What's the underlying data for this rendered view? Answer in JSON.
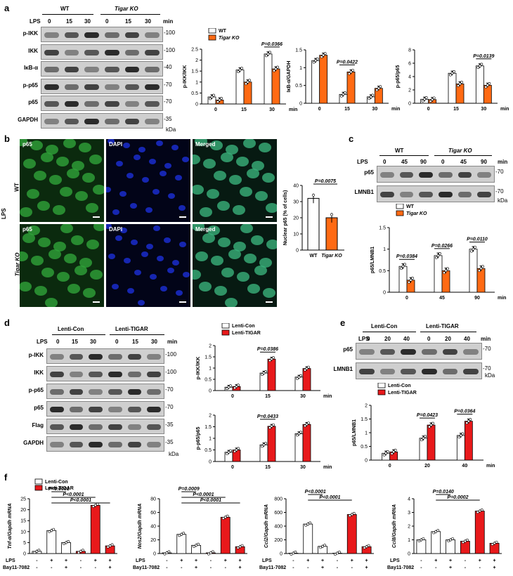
{
  "panels": {
    "a": {
      "label": "a",
      "lps": "LPS",
      "groups": [
        "WT",
        "Tigar KO"
      ],
      "times": [
        "0",
        "15",
        "30"
      ],
      "time_unit": "min",
      "rows": [
        {
          "name": "p-IKK",
          "mw": "100"
        },
        {
          "name": "IKK",
          "mw": "100"
        },
        {
          "name": "IκB-α",
          "mw": "40"
        },
        {
          "name": "p-p65",
          "mw": "70"
        },
        {
          "name": "p65",
          "mw": "70"
        },
        {
          "name": "GAPDH",
          "mw": "35"
        }
      ],
      "kda": "kDa"
    },
    "b": {
      "label": "b",
      "side": "LPS",
      "rows": [
        "WT",
        "Tigar KO"
      ],
      "images": [
        "p65",
        "DAPI",
        "Merged"
      ]
    },
    "c": {
      "label": "c",
      "lps": "LPS",
      "groups": [
        "WT",
        "Tigar KO"
      ],
      "times": [
        "0",
        "45",
        "90"
      ],
      "time_unit": "min",
      "rows": [
        {
          "name": "p65",
          "mw": "70"
        },
        {
          "name": "LMNB1",
          "mw": "70"
        }
      ],
      "kda": "kDa"
    },
    "d": {
      "label": "d",
      "lps": "LPS",
      "groups": [
        "Lenti-Con",
        "Lenti-TIGAR"
      ],
      "times": [
        "0",
        "15",
        "30"
      ],
      "time_unit": "min",
      "rows": [
        {
          "name": "p-IKK",
          "mw": "100"
        },
        {
          "name": "IKK",
          "mw": "100"
        },
        {
          "name": "p-p65",
          "mw": "70"
        },
        {
          "name": "p65",
          "mw": "70"
        },
        {
          "name": "Flag",
          "mw": "35"
        },
        {
          "name": "GAPDH",
          "mw": "35"
        }
      ],
      "kda": "kDa"
    },
    "e": {
      "label": "e",
      "lps": "LPS",
      "groups": [
        "Lenti-Con",
        "Lenti-TIGAR"
      ],
      "times": [
        "0",
        "20",
        "40"
      ],
      "time_unit": "min",
      "rows": [
        {
          "name": "p65",
          "mw": "70"
        },
        {
          "name": "LMNB1",
          "mw": "70"
        }
      ],
      "kda": "kDa"
    },
    "f": {
      "label": "f",
      "lps": "LPS",
      "bay": "Bay11-7082",
      "lps_signs": [
        "-",
        "+",
        "+",
        "-",
        "+",
        "+"
      ],
      "bay_signs": [
        "-",
        "-",
        "+",
        "-",
        "-",
        "+"
      ]
    }
  },
  "colors": {
    "wt": "#ffffff",
    "ko": "#ff6a13",
    "lenti_con": "#ffffff",
    "lenti_tigar": "#e8191b"
  },
  "chart_data": [
    {
      "id": "a1",
      "type": "bar",
      "ylabel": "p-IKK/IKK",
      "xlabel": "min",
      "categories": [
        "0",
        "15",
        "30"
      ],
      "ylim": [
        0,
        2.5
      ],
      "yticks": [
        0,
        0.5,
        1.0,
        1.5,
        2.0,
        2.5
      ],
      "legend": [
        "WT",
        "Tigar KO"
      ],
      "series": [
        {
          "name": "WT",
          "values": [
            0.32,
            1.55,
            2.28
          ]
        },
        {
          "name": "Tigar KO",
          "values": [
            0.18,
            1.0,
            1.6
          ]
        }
      ],
      "annotations": [
        {
          "text": "P=0.0366",
          "category": "30"
        }
      ]
    },
    {
      "id": "a2",
      "type": "bar",
      "ylabel": "IκB-α/GAPDH",
      "xlabel": "min",
      "categories": [
        "0",
        "15",
        "30"
      ],
      "ylim": [
        0,
        1.5
      ],
      "yticks": [
        0,
        0.5,
        1.0,
        1.5
      ],
      "series": [
        {
          "name": "WT",
          "values": [
            1.2,
            0.25,
            0.18
          ]
        },
        {
          "name": "Tigar KO",
          "values": [
            1.35,
            0.88,
            0.42
          ]
        }
      ],
      "annotations": [
        {
          "text": "P=0.0422",
          "category": "15"
        }
      ]
    },
    {
      "id": "a3",
      "type": "bar",
      "ylabel": "p-p65/p65",
      "xlabel": "min",
      "categories": [
        "0",
        "15",
        "30"
      ],
      "ylim": [
        0,
        8
      ],
      "yticks": [
        0,
        2,
        4,
        6,
        8
      ],
      "series": [
        {
          "name": "WT",
          "values": [
            0.6,
            4.5,
            5.6
          ]
        },
        {
          "name": "Tigar KO",
          "values": [
            0.55,
            2.9,
            2.7
          ]
        }
      ],
      "annotations": [
        {
          "text": "P=0.0139",
          "category": "30"
        }
      ]
    },
    {
      "id": "b1",
      "type": "bar",
      "ylabel": "Nuclear p65 (% of cells)",
      "categories": [
        "WT",
        "Tigar KO"
      ],
      "ylim": [
        0,
        40
      ],
      "yticks": [
        0,
        10,
        20,
        30,
        40
      ],
      "series": [
        {
          "name": "Nuclear p65",
          "values": [
            32,
            20
          ]
        }
      ],
      "annotations": [
        {
          "text": "P=0.0075"
        }
      ]
    },
    {
      "id": "c1",
      "type": "bar",
      "ylabel": "p65/LMNB1",
      "xlabel": "min",
      "categories": [
        "0",
        "45",
        "90"
      ],
      "ylim": [
        0,
        1.5
      ],
      "yticks": [
        0,
        0.5,
        1.0,
        1.5
      ],
      "legend": [
        "WT",
        "Tigar KO"
      ],
      "series": [
        {
          "name": "WT",
          "values": [
            0.6,
            0.85,
            1.0
          ]
        },
        {
          "name": "Tigar KO",
          "values": [
            0.28,
            0.5,
            0.55
          ]
        }
      ],
      "annotations": [
        {
          "text": "P=0.0384",
          "category": "0"
        },
        {
          "text": "P=0.0266",
          "category": "45"
        },
        {
          "text": "P=0.0110",
          "category": "90"
        }
      ]
    },
    {
      "id": "d1",
      "type": "bar",
      "ylabel": "p-IKK/IKK",
      "xlabel": "min",
      "categories": [
        "0",
        "15",
        "30"
      ],
      "ylim": [
        0,
        2.0
      ],
      "yticks": [
        0,
        0.5,
        1.0,
        1.5,
        2.0
      ],
      "legend": [
        "Lenti-Con",
        "Lenti-TIGAR"
      ],
      "series": [
        {
          "name": "Lenti-Con",
          "values": [
            0.15,
            0.78,
            0.6
          ]
        },
        {
          "name": "Lenti-TIGAR",
          "values": [
            0.18,
            1.4,
            0.98
          ]
        }
      ],
      "annotations": [
        {
          "text": "P=0.0386",
          "category": "15"
        }
      ]
    },
    {
      "id": "d2",
      "type": "bar",
      "ylabel": "p-p65/p65",
      "xlabel": "min",
      "categories": [
        "0",
        "15",
        "30"
      ],
      "ylim": [
        0,
        2.0
      ],
      "yticks": [
        0,
        0.5,
        1.0,
        1.5,
        2.0
      ],
      "series": [
        {
          "name": "Lenti-Con",
          "values": [
            0.4,
            0.72,
            1.2
          ]
        },
        {
          "name": "Lenti-TIGAR",
          "values": [
            0.5,
            1.52,
            1.6
          ]
        }
      ],
      "annotations": [
        {
          "text": "P=0.0433",
          "category": "15"
        }
      ]
    },
    {
      "id": "e1",
      "type": "bar",
      "ylabel": "p65/LMNB1",
      "xlabel": "min",
      "categories": [
        "0",
        "20",
        "40"
      ],
      "ylim": [
        0,
        2.0
      ],
      "yticks": [
        0,
        0.5,
        1.0,
        1.5,
        2.0
      ],
      "legend": [
        "Lenti-Con",
        "Lenti-TIGAR"
      ],
      "series": [
        {
          "name": "Lenti-Con",
          "values": [
            0.25,
            0.8,
            0.9
          ]
        },
        {
          "name": "Lenti-TIGAR",
          "values": [
            0.3,
            1.28,
            1.42
          ]
        }
      ],
      "annotations": [
        {
          "text": "P=0.0423",
          "category": "20"
        },
        {
          "text": "P=0.0364",
          "category": "40"
        }
      ]
    },
    {
      "id": "f1",
      "type": "bar",
      "ylabel": "Tnf-α/Gapdh mRNA",
      "ylim": [
        0,
        25
      ],
      "yticks": [
        0,
        5,
        10,
        15,
        20,
        25
      ],
      "legend": [
        "Lenti-Con",
        "Lenti-TIGAR"
      ],
      "bars": [
        {
          "group": "Lenti-Con",
          "value": 1
        },
        {
          "group": "Lenti-Con",
          "value": 10.5
        },
        {
          "group": "Lenti-Con",
          "value": 5
        },
        {
          "group": "Lenti-TIGAR",
          "value": 1
        },
        {
          "group": "Lenti-TIGAR",
          "value": 22
        },
        {
          "group": "Lenti-TIGAR",
          "value": 3.5
        }
      ],
      "annotations": [
        "P<0.0001",
        "P<0.0001",
        "P<0.0001"
      ]
    },
    {
      "id": "f2",
      "type": "bar",
      "ylabel": "Nos2/Gapdh mRNA",
      "ylim": [
        0,
        80
      ],
      "yticks": [
        0,
        20,
        40,
        60,
        80
      ],
      "bars": [
        {
          "group": "Lenti-Con",
          "value": 1
        },
        {
          "group": "Lenti-Con",
          "value": 28
        },
        {
          "group": "Lenti-Con",
          "value": 12
        },
        {
          "group": "Lenti-TIGAR",
          "value": 1
        },
        {
          "group": "Lenti-TIGAR",
          "value": 53
        },
        {
          "group": "Lenti-TIGAR",
          "value": 10
        }
      ],
      "annotations": [
        "P=0.0009",
        "P<0.0001",
        "P<0.0001"
      ]
    },
    {
      "id": "f3",
      "type": "bar",
      "ylabel": "Ccl2/Gapdh mRNA",
      "ylim": [
        0,
        800
      ],
      "yticks": [
        0,
        200,
        400,
        600,
        800
      ],
      "bars": [
        {
          "group": "Lenti-Con",
          "value": 5
        },
        {
          "group": "Lenti-Con",
          "value": 430
        },
        {
          "group": "Lenti-Con",
          "value": 105
        },
        {
          "group": "Lenti-TIGAR",
          "value": 5
        },
        {
          "group": "Lenti-TIGAR",
          "value": 570
        },
        {
          "group": "Lenti-TIGAR",
          "value": 100
        }
      ],
      "annotations": [
        "P<0.0001",
        "P<0.0001"
      ]
    },
    {
      "id": "f4",
      "type": "bar",
      "ylabel": "Ccl8/Gapdh mRNA",
      "ylim": [
        0,
        4
      ],
      "yticks": [
        0,
        1,
        2,
        3,
        4
      ],
      "bars": [
        {
          "group": "Lenti-Con",
          "value": 1.0
        },
        {
          "group": "Lenti-Con",
          "value": 1.6
        },
        {
          "group": "Lenti-Con",
          "value": 1.0
        },
        {
          "group": "Lenti-TIGAR",
          "value": 0.9
        },
        {
          "group": "Lenti-TIGAR",
          "value": 3.1
        },
        {
          "group": "Lenti-TIGAR",
          "value": 0.75
        }
      ],
      "annotations": [
        "P=0.0140",
        "P=0.0002"
      ]
    }
  ]
}
